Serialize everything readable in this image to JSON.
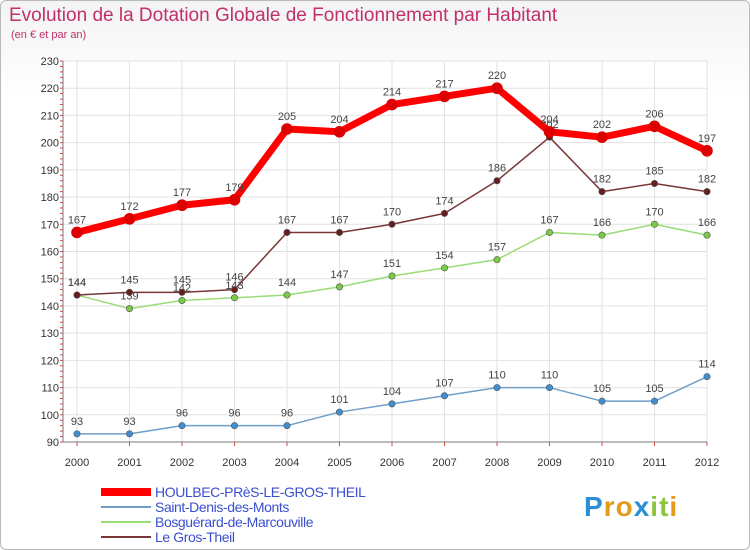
{
  "title": "Evolution de la Dotation Globale de Fonctionnement par Habitant",
  "subtitle": "(en € et par an)",
  "brand": {
    "letters": [
      "P",
      "r",
      "o",
      "x",
      "i",
      "t",
      "i"
    ],
    "colors": [
      "#2a8fd6",
      "#e39b1c",
      "#e39b1c",
      "#2a8fd6",
      "#8bc43f",
      "#8bc43f",
      "#e39b1c"
    ]
  },
  "chart_data": {
    "type": "line",
    "title": "Evolution de la Dotation Globale de Fonctionnement par Habitant",
    "ylabel": "(en € et par an)",
    "xlabel": "",
    "categories": [
      "2000",
      "2001",
      "2002",
      "2003",
      "2004",
      "2005",
      "2006",
      "2007",
      "2008",
      "2009",
      "2010",
      "2011",
      "2012"
    ],
    "ylim": [
      90,
      230
    ],
    "yticks": [
      90,
      100,
      110,
      120,
      130,
      140,
      150,
      160,
      170,
      180,
      190,
      200,
      210,
      220,
      230
    ],
    "grid": true,
    "legend": "bottom-left",
    "series": [
      {
        "name": "HOULBEC-PRèS-LE-GROS-THEIL",
        "color": "#ff0000",
        "marker": "#dd0000",
        "width": 7,
        "values": [
          167,
          172,
          177,
          179,
          205,
          204,
          214,
          217,
          220,
          204,
          202,
          206,
          197
        ]
      },
      {
        "name": "Saint-Denis-des-Monts",
        "color": "#6f9fc8",
        "marker": "#3f8fd0",
        "width": 1.5,
        "values": [
          93,
          93,
          96,
          96,
          96,
          101,
          104,
          107,
          110,
          110,
          105,
          105,
          114
        ]
      },
      {
        "name": "Bosguérard-de-Marcouville",
        "color": "#99dd77",
        "marker": "#77cc44",
        "width": 1.5,
        "values": [
          144,
          139,
          142,
          143,
          144,
          147,
          151,
          154,
          157,
          167,
          166,
          170,
          166
        ]
      },
      {
        "name": "Le Gros-Theil",
        "color": "#7a3636",
        "marker": "#661f1f",
        "width": 1.5,
        "values": [
          144,
          145,
          145,
          146,
          167,
          167,
          170,
          174,
          186,
          202,
          182,
          185,
          182
        ]
      }
    ]
  }
}
